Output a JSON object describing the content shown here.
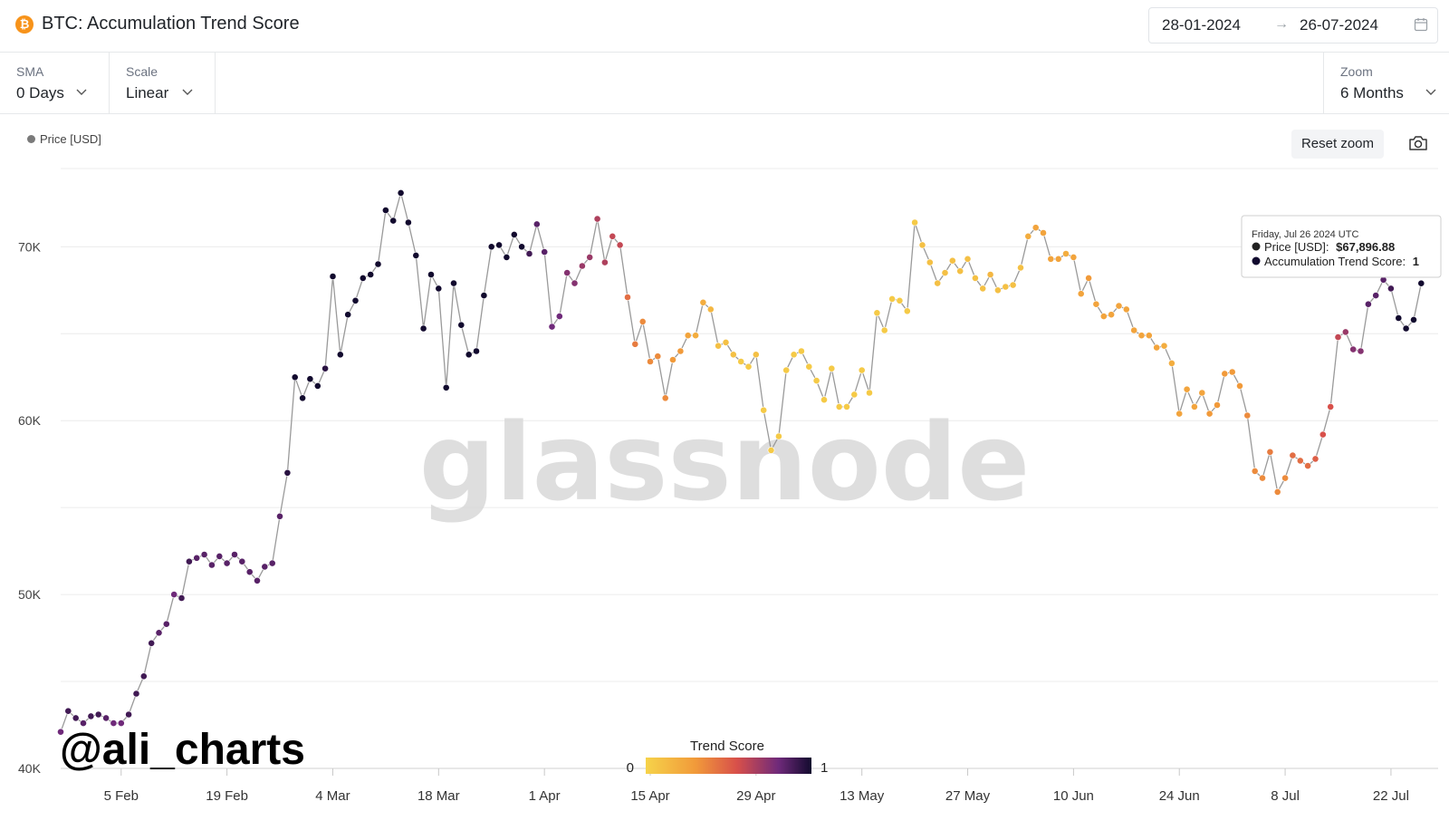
{
  "header": {
    "coin_icon": "bitcoin-icon",
    "title": "BTC: Accumulation Trend Score",
    "date_from": "28-01-2024",
    "date_arrow": "→",
    "date_to": "26-07-2024",
    "calendar_icon": "calendar-icon"
  },
  "controls": {
    "sma": {
      "label": "SMA",
      "value": "0 Days"
    },
    "scale": {
      "label": "Scale",
      "value": "Linear"
    },
    "zoom": {
      "label": "Zoom",
      "value": "6 Months"
    }
  },
  "toolbar": {
    "reset_zoom": "Reset zoom",
    "camera_icon": "camera-icon"
  },
  "watermark": "glassnode",
  "signature": "@ali_charts",
  "tooltip": {
    "date": "Friday, Jul 26 2024 UTC",
    "price_label": "Price [USD]:",
    "price_value": "$67,896.88",
    "score_label": "Accumulation Trend Score:",
    "score_value": "1"
  },
  "colors": {
    "line": "#9a9a9a",
    "grid": "#ececec",
    "score_0": "#f6d34a",
    "score_mid": "#df5a3a",
    "score_1": "#120a2e",
    "legend_dot": "#7a7a7a"
  },
  "chart_data": {
    "type": "scatter",
    "series_legend": "Price [USD]",
    "yticks": [
      {
        "v": 40000,
        "l": "40K"
      },
      {
        "v": 50000,
        "l": "50K"
      },
      {
        "v": 60000,
        "l": "60K"
      },
      {
        "v": 70000,
        "l": "70K"
      }
    ],
    "ylim": [
      40000,
      74500
    ],
    "xlim": [
      "2024-01-28",
      "2024-07-28"
    ],
    "xticks": [
      {
        "d": "2024-02-05",
        "l": "5 Feb"
      },
      {
        "d": "2024-02-19",
        "l": "19 Feb"
      },
      {
        "d": "2024-03-04",
        "l": "4 Mar"
      },
      {
        "d": "2024-03-18",
        "l": "18 Mar"
      },
      {
        "d": "2024-04-01",
        "l": "1 Apr"
      },
      {
        "d": "2024-04-15",
        "l": "15 Apr"
      },
      {
        "d": "2024-04-29",
        "l": "29 Apr"
      },
      {
        "d": "2024-05-13",
        "l": "13 May"
      },
      {
        "d": "2024-05-27",
        "l": "27 May"
      },
      {
        "d": "2024-06-10",
        "l": "10 Jun"
      },
      {
        "d": "2024-06-24",
        "l": "24 Jun"
      },
      {
        "d": "2024-07-08",
        "l": "8 Jul"
      },
      {
        "d": "2024-07-22",
        "l": "22 Jul"
      }
    ],
    "colorbar": {
      "title": "Trend Score",
      "min_label": "0",
      "max_label": "1"
    },
    "series": [
      {
        "x": "2024-01-28",
        "y": 42100,
        "score": 0.8
      },
      {
        "x": "2024-01-29",
        "y": 43300,
        "score": 0.9
      },
      {
        "x": "2024-01-30",
        "y": 42900,
        "score": 0.9
      },
      {
        "x": "2024-01-31",
        "y": 42600,
        "score": 0.85
      },
      {
        "x": "2024-02-01",
        "y": 43000,
        "score": 0.9
      },
      {
        "x": "2024-02-02",
        "y": 43100,
        "score": 0.9
      },
      {
        "x": "2024-02-03",
        "y": 42900,
        "score": 0.85
      },
      {
        "x": "2024-02-04",
        "y": 42600,
        "score": 0.8
      },
      {
        "x": "2024-02-05",
        "y": 42600,
        "score": 0.8
      },
      {
        "x": "2024-02-06",
        "y": 43100,
        "score": 0.9
      },
      {
        "x": "2024-02-07",
        "y": 44300,
        "score": 0.9
      },
      {
        "x": "2024-02-08",
        "y": 45300,
        "score": 0.9
      },
      {
        "x": "2024-02-09",
        "y": 47200,
        "score": 0.9
      },
      {
        "x": "2024-02-10",
        "y": 47800,
        "score": 0.85
      },
      {
        "x": "2024-02-11",
        "y": 48300,
        "score": 0.85
      },
      {
        "x": "2024-02-12",
        "y": 50000,
        "score": 0.8
      },
      {
        "x": "2024-02-13",
        "y": 49800,
        "score": 0.9
      },
      {
        "x": "2024-02-14",
        "y": 51900,
        "score": 0.9
      },
      {
        "x": "2024-02-15",
        "y": 52100,
        "score": 0.85
      },
      {
        "x": "2024-02-16",
        "y": 52300,
        "score": 0.85
      },
      {
        "x": "2024-02-17",
        "y": 51700,
        "score": 0.85
      },
      {
        "x": "2024-02-18",
        "y": 52200,
        "score": 0.85
      },
      {
        "x": "2024-02-19",
        "y": 51800,
        "score": 0.85
      },
      {
        "x": "2024-02-20",
        "y": 52300,
        "score": 0.85
      },
      {
        "x": "2024-02-21",
        "y": 51900,
        "score": 0.85
      },
      {
        "x": "2024-02-22",
        "y": 51300,
        "score": 0.85
      },
      {
        "x": "2024-02-23",
        "y": 50800,
        "score": 0.85
      },
      {
        "x": "2024-02-24",
        "y": 51600,
        "score": 0.85
      },
      {
        "x": "2024-02-25",
        "y": 51800,
        "score": 0.85
      },
      {
        "x": "2024-02-26",
        "y": 54500,
        "score": 0.85
      },
      {
        "x": "2024-02-27",
        "y": 57000,
        "score": 0.95
      },
      {
        "x": "2024-02-28",
        "y": 62500,
        "score": 1.0
      },
      {
        "x": "2024-02-29",
        "y": 61300,
        "score": 1.0
      },
      {
        "x": "2024-03-01",
        "y": 62400,
        "score": 1.0
      },
      {
        "x": "2024-03-02",
        "y": 62000,
        "score": 1.0
      },
      {
        "x": "2024-03-03",
        "y": 63000,
        "score": 0.95
      },
      {
        "x": "2024-03-04",
        "y": 68300,
        "score": 1.0
      },
      {
        "x": "2024-03-05",
        "y": 63800,
        "score": 1.0
      },
      {
        "x": "2024-03-06",
        "y": 66100,
        "score": 1.0
      },
      {
        "x": "2024-03-07",
        "y": 66900,
        "score": 1.0
      },
      {
        "x": "2024-03-08",
        "y": 68200,
        "score": 1.0
      },
      {
        "x": "2024-03-09",
        "y": 68400,
        "score": 1.0
      },
      {
        "x": "2024-03-10",
        "y": 69000,
        "score": 1.0
      },
      {
        "x": "2024-03-11",
        "y": 72100,
        "score": 1.0
      },
      {
        "x": "2024-03-12",
        "y": 71500,
        "score": 1.0
      },
      {
        "x": "2024-03-13",
        "y": 73100,
        "score": 1.0
      },
      {
        "x": "2024-03-14",
        "y": 71400,
        "score": 1.0
      },
      {
        "x": "2024-03-15",
        "y": 69500,
        "score": 1.0
      },
      {
        "x": "2024-03-16",
        "y": 65300,
        "score": 1.0
      },
      {
        "x": "2024-03-17",
        "y": 68400,
        "score": 1.0
      },
      {
        "x": "2024-03-18",
        "y": 67600,
        "score": 1.0
      },
      {
        "x": "2024-03-19",
        "y": 61900,
        "score": 1.0
      },
      {
        "x": "2024-03-20",
        "y": 67900,
        "score": 1.0
      },
      {
        "x": "2024-03-21",
        "y": 65500,
        "score": 1.0
      },
      {
        "x": "2024-03-22",
        "y": 63800,
        "score": 1.0
      },
      {
        "x": "2024-03-23",
        "y": 64000,
        "score": 1.0
      },
      {
        "x": "2024-03-24",
        "y": 67200,
        "score": 1.0
      },
      {
        "x": "2024-03-25",
        "y": 70000,
        "score": 1.0
      },
      {
        "x": "2024-03-26",
        "y": 70100,
        "score": 1.0
      },
      {
        "x": "2024-03-27",
        "y": 69400,
        "score": 1.0
      },
      {
        "x": "2024-03-28",
        "y": 70700,
        "score": 1.0
      },
      {
        "x": "2024-03-29",
        "y": 70000,
        "score": 1.0
      },
      {
        "x": "2024-03-30",
        "y": 69600,
        "score": 0.9
      },
      {
        "x": "2024-03-31",
        "y": 71300,
        "score": 0.85
      },
      {
        "x": "2024-04-01",
        "y": 69700,
        "score": 0.85
      },
      {
        "x": "2024-04-02",
        "y": 65400,
        "score": 0.8
      },
      {
        "x": "2024-04-03",
        "y": 66000,
        "score": 0.8
      },
      {
        "x": "2024-04-04",
        "y": 68500,
        "score": 0.75
      },
      {
        "x": "2024-04-05",
        "y": 67900,
        "score": 0.75
      },
      {
        "x": "2024-04-06",
        "y": 68900,
        "score": 0.7
      },
      {
        "x": "2024-04-07",
        "y": 69400,
        "score": 0.7
      },
      {
        "x": "2024-04-08",
        "y": 71600,
        "score": 0.65
      },
      {
        "x": "2024-04-09",
        "y": 69100,
        "score": 0.65
      },
      {
        "x": "2024-04-10",
        "y": 70600,
        "score": 0.6
      },
      {
        "x": "2024-04-11",
        "y": 70100,
        "score": 0.6
      },
      {
        "x": "2024-04-12",
        "y": 67100,
        "score": 0.45
      },
      {
        "x": "2024-04-13",
        "y": 64400,
        "score": 0.4
      },
      {
        "x": "2024-04-14",
        "y": 65700,
        "score": 0.35
      },
      {
        "x": "2024-04-15",
        "y": 63400,
        "score": 0.35
      },
      {
        "x": "2024-04-16",
        "y": 63700,
        "score": 0.35
      },
      {
        "x": "2024-04-17",
        "y": 61300,
        "score": 0.35
      },
      {
        "x": "2024-04-18",
        "y": 63500,
        "score": 0.3
      },
      {
        "x": "2024-04-19",
        "y": 64000,
        "score": 0.3
      },
      {
        "x": "2024-04-20",
        "y": 64900,
        "score": 0.25
      },
      {
        "x": "2024-04-21",
        "y": 64900,
        "score": 0.2
      },
      {
        "x": "2024-04-22",
        "y": 66800,
        "score": 0.2
      },
      {
        "x": "2024-04-23",
        "y": 66400,
        "score": 0.15
      },
      {
        "x": "2024-04-24",
        "y": 64300,
        "score": 0.1
      },
      {
        "x": "2024-04-25",
        "y": 64500,
        "score": 0.1
      },
      {
        "x": "2024-04-26",
        "y": 63800,
        "score": 0.1
      },
      {
        "x": "2024-04-27",
        "y": 63400,
        "score": 0.05
      },
      {
        "x": "2024-04-28",
        "y": 63100,
        "score": 0.05
      },
      {
        "x": "2024-04-29",
        "y": 63800,
        "score": 0.1
      },
      {
        "x": "2024-04-30",
        "y": 60600,
        "score": 0.05
      },
      {
        "x": "2024-05-01",
        "y": 58300,
        "score": 0.05
      },
      {
        "x": "2024-05-02",
        "y": 59100,
        "score": 0.05
      },
      {
        "x": "2024-05-03",
        "y": 62900,
        "score": 0.05
      },
      {
        "x": "2024-05-04",
        "y": 63800,
        "score": 0.05
      },
      {
        "x": "2024-05-05",
        "y": 64000,
        "score": 0.05
      },
      {
        "x": "2024-05-06",
        "y": 63100,
        "score": 0.05
      },
      {
        "x": "2024-05-07",
        "y": 62300,
        "score": 0.05
      },
      {
        "x": "2024-05-08",
        "y": 61200,
        "score": 0.05
      },
      {
        "x": "2024-05-09",
        "y": 63000,
        "score": 0.05
      },
      {
        "x": "2024-05-10",
        "y": 60800,
        "score": 0.05
      },
      {
        "x": "2024-05-11",
        "y": 60800,
        "score": 0.05
      },
      {
        "x": "2024-05-12",
        "y": 61500,
        "score": 0.05
      },
      {
        "x": "2024-05-13",
        "y": 62900,
        "score": 0.05
      },
      {
        "x": "2024-05-14",
        "y": 61600,
        "score": 0.05
      },
      {
        "x": "2024-05-15",
        "y": 66200,
        "score": 0.05
      },
      {
        "x": "2024-05-16",
        "y": 65200,
        "score": 0.05
      },
      {
        "x": "2024-05-17",
        "y": 67000,
        "score": 0.05
      },
      {
        "x": "2024-05-18",
        "y": 66900,
        "score": 0.05
      },
      {
        "x": "2024-05-19",
        "y": 66300,
        "score": 0.05
      },
      {
        "x": "2024-05-20",
        "y": 71400,
        "score": 0.05
      },
      {
        "x": "2024-05-21",
        "y": 70100,
        "score": 0.1
      },
      {
        "x": "2024-05-22",
        "y": 69100,
        "score": 0.1
      },
      {
        "x": "2024-05-23",
        "y": 67900,
        "score": 0.1
      },
      {
        "x": "2024-05-24",
        "y": 68500,
        "score": 0.1
      },
      {
        "x": "2024-05-25",
        "y": 69200,
        "score": 0.1
      },
      {
        "x": "2024-05-26",
        "y": 68600,
        "score": 0.1
      },
      {
        "x": "2024-05-27",
        "y": 69300,
        "score": 0.1
      },
      {
        "x": "2024-05-28",
        "y": 68200,
        "score": 0.1
      },
      {
        "x": "2024-05-29",
        "y": 67600,
        "score": 0.1
      },
      {
        "x": "2024-05-30",
        "y": 68400,
        "score": 0.15
      },
      {
        "x": "2024-05-31",
        "y": 67500,
        "score": 0.1
      },
      {
        "x": "2024-06-01",
        "y": 67700,
        "score": 0.1
      },
      {
        "x": "2024-06-02",
        "y": 67800,
        "score": 0.1
      },
      {
        "x": "2024-06-03",
        "y": 68800,
        "score": 0.1
      },
      {
        "x": "2024-06-04",
        "y": 70600,
        "score": 0.2
      },
      {
        "x": "2024-06-05",
        "y": 71100,
        "score": 0.25
      },
      {
        "x": "2024-06-06",
        "y": 70800,
        "score": 0.25
      },
      {
        "x": "2024-06-07",
        "y": 69300,
        "score": 0.25
      },
      {
        "x": "2024-06-08",
        "y": 69300,
        "score": 0.25
      },
      {
        "x": "2024-06-09",
        "y": 69600,
        "score": 0.2
      },
      {
        "x": "2024-06-10",
        "y": 69400,
        "score": 0.25
      },
      {
        "x": "2024-06-11",
        "y": 67300,
        "score": 0.25
      },
      {
        "x": "2024-06-12",
        "y": 68200,
        "score": 0.3
      },
      {
        "x": "2024-06-13",
        "y": 66700,
        "score": 0.25
      },
      {
        "x": "2024-06-14",
        "y": 66000,
        "score": 0.25
      },
      {
        "x": "2024-06-15",
        "y": 66100,
        "score": 0.25
      },
      {
        "x": "2024-06-16",
        "y": 66600,
        "score": 0.25
      },
      {
        "x": "2024-06-17",
        "y": 66400,
        "score": 0.25
      },
      {
        "x": "2024-06-18",
        "y": 65200,
        "score": 0.25
      },
      {
        "x": "2024-06-19",
        "y": 64900,
        "score": 0.25
      },
      {
        "x": "2024-06-20",
        "y": 64900,
        "score": 0.25
      },
      {
        "x": "2024-06-21",
        "y": 64200,
        "score": 0.25
      },
      {
        "x": "2024-06-22",
        "y": 64300,
        "score": 0.2
      },
      {
        "x": "2024-06-23",
        "y": 63300,
        "score": 0.2
      },
      {
        "x": "2024-06-24",
        "y": 60400,
        "score": 0.25
      },
      {
        "x": "2024-06-25",
        "y": 61800,
        "score": 0.25
      },
      {
        "x": "2024-06-26",
        "y": 60800,
        "score": 0.25
      },
      {
        "x": "2024-06-27",
        "y": 61600,
        "score": 0.25
      },
      {
        "x": "2024-06-28",
        "y": 60400,
        "score": 0.3
      },
      {
        "x": "2024-06-29",
        "y": 60900,
        "score": 0.3
      },
      {
        "x": "2024-06-30",
        "y": 62700,
        "score": 0.3
      },
      {
        "x": "2024-07-01",
        "y": 62800,
        "score": 0.3
      },
      {
        "x": "2024-07-02",
        "y": 62000,
        "score": 0.3
      },
      {
        "x": "2024-07-03",
        "y": 60300,
        "score": 0.35
      },
      {
        "x": "2024-07-04",
        "y": 57100,
        "score": 0.35
      },
      {
        "x": "2024-07-05",
        "y": 56700,
        "score": 0.35
      },
      {
        "x": "2024-07-06",
        "y": 58200,
        "score": 0.4
      },
      {
        "x": "2024-07-07",
        "y": 55900,
        "score": 0.35
      },
      {
        "x": "2024-07-08",
        "y": 56700,
        "score": 0.35
      },
      {
        "x": "2024-07-09",
        "y": 58000,
        "score": 0.45
      },
      {
        "x": "2024-07-10",
        "y": 57700,
        "score": 0.45
      },
      {
        "x": "2024-07-11",
        "y": 57400,
        "score": 0.45
      },
      {
        "x": "2024-07-12",
        "y": 57800,
        "score": 0.5
      },
      {
        "x": "2024-07-13",
        "y": 59200,
        "score": 0.55
      },
      {
        "x": "2024-07-14",
        "y": 60800,
        "score": 0.55
      },
      {
        "x": "2024-07-15",
        "y": 64800,
        "score": 0.6
      },
      {
        "x": "2024-07-16",
        "y": 65100,
        "score": 0.7
      },
      {
        "x": "2024-07-17",
        "y": 64100,
        "score": 0.75
      },
      {
        "x": "2024-07-18",
        "y": 64000,
        "score": 0.75
      },
      {
        "x": "2024-07-19",
        "y": 66700,
        "score": 0.85
      },
      {
        "x": "2024-07-20",
        "y": 67200,
        "score": 0.85
      },
      {
        "x": "2024-07-21",
        "y": 68100,
        "score": 0.85
      },
      {
        "x": "2024-07-22",
        "y": 67600,
        "score": 0.9
      },
      {
        "x": "2024-07-23",
        "y": 65900,
        "score": 1.0
      },
      {
        "x": "2024-07-24",
        "y": 65300,
        "score": 1.0
      },
      {
        "x": "2024-07-25",
        "y": 65800,
        "score": 1.0
      },
      {
        "x": "2024-07-26",
        "y": 67896.88,
        "score": 1.0
      }
    ]
  }
}
